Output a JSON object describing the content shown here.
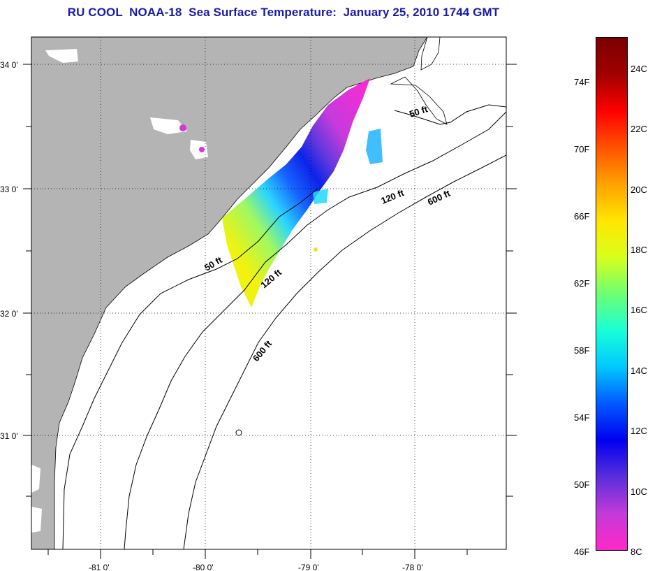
{
  "title": "RU COOL  NOAA-18  Sea Surface Temperature:  January 25, 2010 1744 GMT",
  "map": {
    "lat_labels": [
      "34 0'",
      "33 0'",
      "32 0'",
      "31 0'"
    ],
    "lon_labels": [
      "-81 0'",
      "-80 0'",
      "-79 0'",
      "-78 0'"
    ],
    "isobath_labels": [
      "50 ft",
      "50 ft",
      "120 ft",
      "120 ft",
      "600 ft",
      "600 ft"
    ],
    "land_color": "#b4b4b4",
    "ocean_color": "#ffffff"
  },
  "colorbar": {
    "fahrenheit_labels": [
      "74F",
      "70F",
      "66F",
      "62F",
      "58F",
      "54F",
      "50F",
      "46F"
    ],
    "celsius_labels": [
      "24C",
      "22C",
      "20C",
      "18C",
      "16C",
      "14C",
      "12C",
      "10C",
      "8C"
    ],
    "range_c": [
      8,
      25
    ],
    "colors": [
      "#ff29c8",
      "#c23ad9",
      "#5a2edb",
      "#0000f0",
      "#0059ff",
      "#00c8ff",
      "#19ffd8",
      "#6eff72",
      "#d8ff1c",
      "#ffe600",
      "#ffa200",
      "#ff5200",
      "#ff0000",
      "#a10000",
      "#7a0000"
    ]
  }
}
